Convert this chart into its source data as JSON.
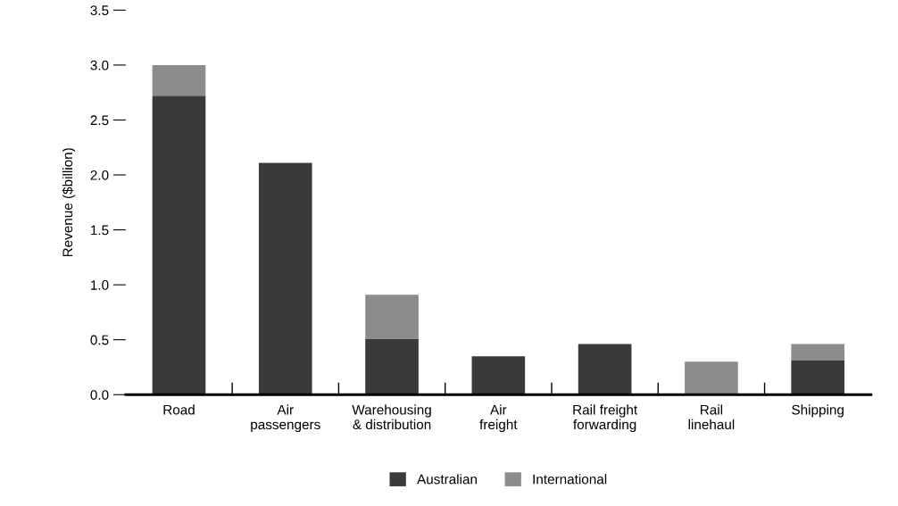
{
  "chart_data": {
    "type": "bar",
    "stacked": true,
    "ylabel": "Revenue ($billion)",
    "categories": [
      "Road",
      "Air\npassengers",
      "Warehousing\n& distribution",
      "Air\nfreight",
      "Rail freight\nforwarding",
      "Rail\nlinehaul",
      "Shipping"
    ],
    "series": [
      {
        "name": "Australian",
        "color": "#3a3a3a",
        "values": [
          2.72,
          2.11,
          0.51,
          0.35,
          0.46,
          0,
          0.31
        ]
      },
      {
        "name": "International",
        "color": "#8c8c8c",
        "values": [
          0.28,
          0,
          0.4,
          0,
          0,
          0.3,
          0.15
        ]
      }
    ],
    "ylim": [
      0,
      3.5
    ],
    "yticks": [
      {
        "value": 0,
        "label": "0.0"
      },
      {
        "value": 0.5,
        "label": "0.5"
      },
      {
        "value": 1,
        "label": "1.0"
      },
      {
        "value": 1.5,
        "label": "1.5"
      },
      {
        "value": 2,
        "label": "2.0"
      },
      {
        "value": 2.5,
        "label": "2.5"
      },
      {
        "value": 3,
        "label": "3.0"
      },
      {
        "value": 3.5,
        "label": "3.5"
      }
    ],
    "grid": false,
    "legend": "bottom"
  }
}
